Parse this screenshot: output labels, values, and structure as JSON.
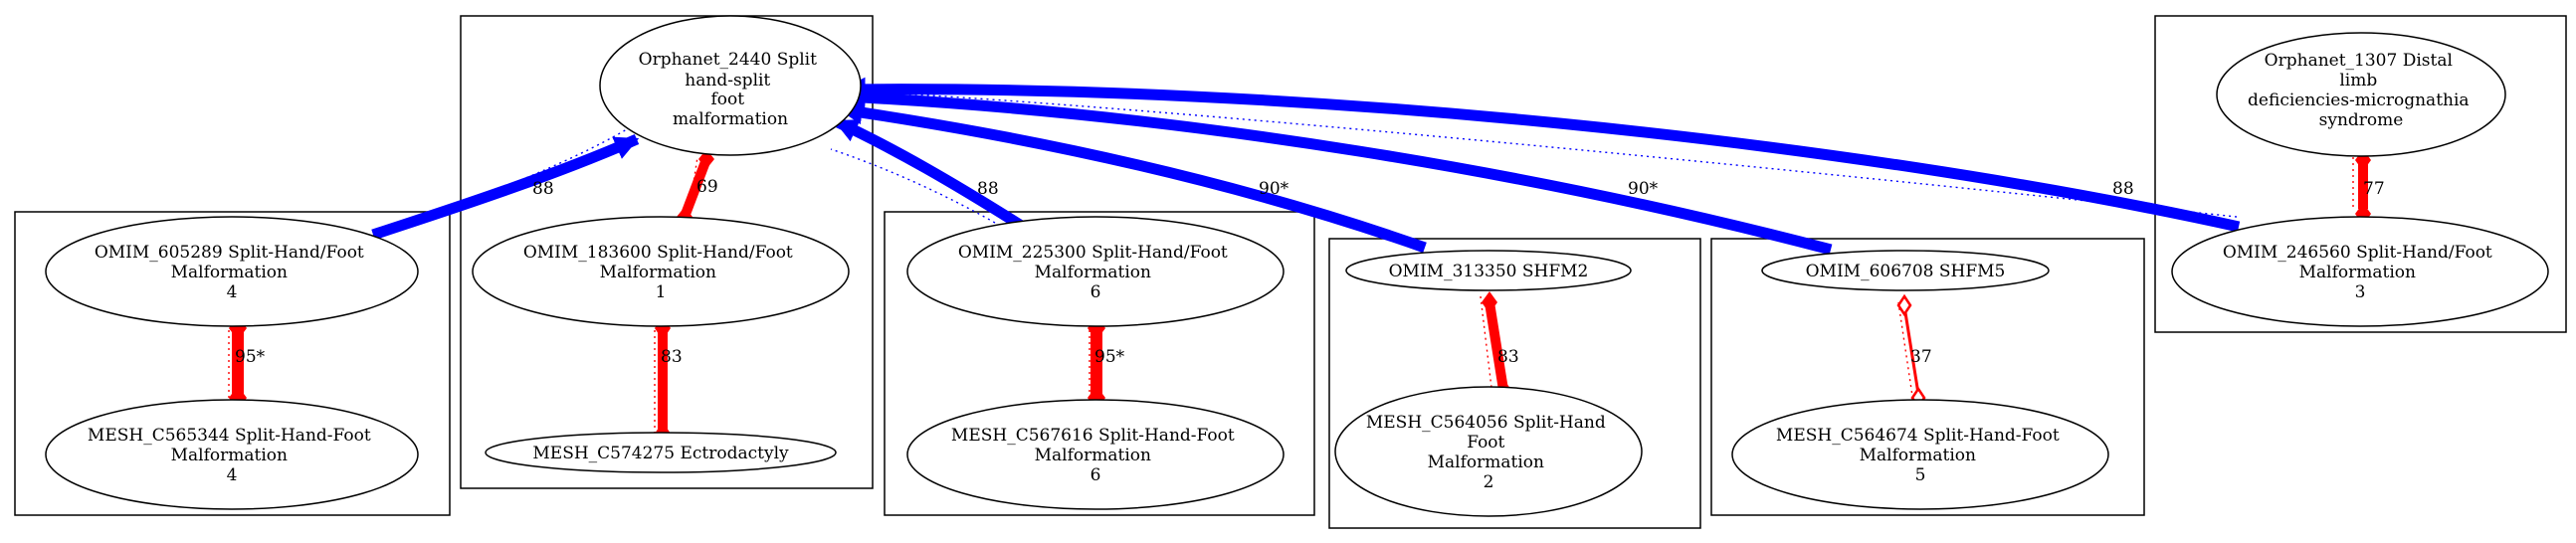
{
  "colors": {
    "blue_edge": "#0000ff",
    "red_edge": "#ff0000",
    "outline": "#000000"
  },
  "nodes": {
    "orphanet_2440": {
      "lines": [
        "Orphanet_2440 Split",
        "hand-split",
        "foot",
        "malformation"
      ]
    },
    "orphanet_1307": {
      "lines": [
        "Orphanet_1307 Distal",
        "limb",
        "deficiencies-micrognathia",
        "syndrome"
      ]
    },
    "omim_605289": {
      "lines": [
        "OMIM_605289 Split-Hand/Foot",
        "Malformation",
        "4"
      ]
    },
    "mesh_c565344": {
      "lines": [
        "MESH_C565344 Split-Hand-Foot",
        "Malformation",
        "4"
      ]
    },
    "omim_183600": {
      "lines": [
        "OMIM_183600 Split-Hand/Foot",
        "Malformation",
        "1"
      ]
    },
    "mesh_c574275": {
      "lines": [
        "MESH_C574275 Ectrodactyly"
      ]
    },
    "omim_225300": {
      "lines": [
        "OMIM_225300 Split-Hand/Foot",
        "Malformation",
        "6"
      ]
    },
    "mesh_c567616": {
      "lines": [
        "MESH_C567616 Split-Hand-Foot",
        "Malformation",
        "6"
      ]
    },
    "omim_313350": {
      "lines": [
        "OMIM_313350 SHFM2"
      ]
    },
    "mesh_c564056": {
      "lines": [
        "MESH_C564056 Split-Hand",
        "Foot",
        "Malformation",
        "2"
      ]
    },
    "omim_606708": {
      "lines": [
        "OMIM_606708 SHFM5"
      ]
    },
    "mesh_c564674": {
      "lines": [
        "MESH_C564674 Split-Hand-Foot",
        "Malformation",
        "5"
      ]
    },
    "omim_246560": {
      "lines": [
        "OMIM_246560 Split-Hand/Foot",
        "Malformation",
        "3"
      ]
    }
  },
  "edges": {
    "e_605289_2440": "88",
    "e_183600_2440": "69",
    "e_225300_2440": "88",
    "e_313350_2440": "90*",
    "e_606708_2440": "90*",
    "e_246560_2440": "88",
    "e_605289_c565344": "95*",
    "e_183600_c574275": "83",
    "e_225300_c567616": "95*",
    "e_313350_c564056": "83",
    "e_606708_c564674": "37",
    "e_1307_246560": "77"
  }
}
